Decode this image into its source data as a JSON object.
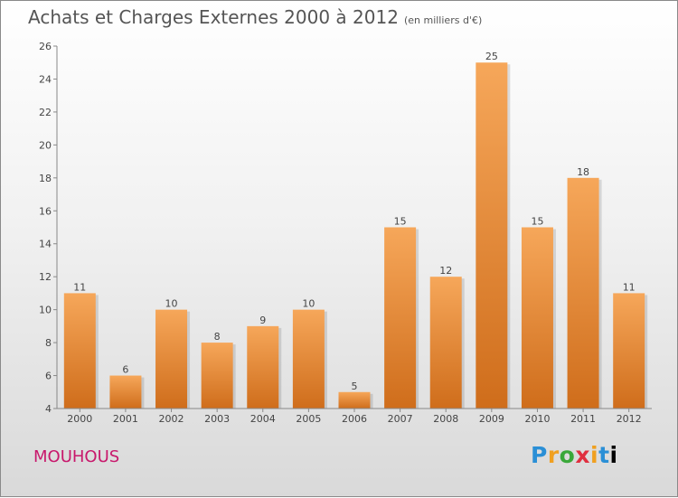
{
  "header": {
    "title": "Achats et Charges Externes 2000 à 2012",
    "subtitle": "(en milliers d'€)"
  },
  "footer": {
    "place": "MOUHOUS",
    "logo_letters": [
      "P",
      "r",
      "o",
      "x",
      "i",
      "t",
      "i"
    ]
  },
  "colors": {
    "bar_top": "#f6a75a",
    "bar_bottom": "#cf6d1b",
    "place_text": "#c8186c",
    "title_text": "#555555"
  },
  "chart_data": {
    "type": "bar",
    "title": "Achats et Charges Externes 2000 à 2012",
    "subtitle": "(en milliers d'€)",
    "categories": [
      "2000",
      "2001",
      "2002",
      "2003",
      "2004",
      "2005",
      "2006",
      "2007",
      "2008",
      "2009",
      "2010",
      "2011",
      "2012"
    ],
    "values": [
      11,
      6,
      10,
      8,
      9,
      10,
      5,
      15,
      12,
      25,
      15,
      18,
      11
    ],
    "ylim": [
      4,
      26
    ],
    "yticks": [
      4,
      6,
      8,
      10,
      12,
      14,
      16,
      18,
      20,
      22,
      24,
      26
    ],
    "grid": false,
    "data_labels": true
  }
}
